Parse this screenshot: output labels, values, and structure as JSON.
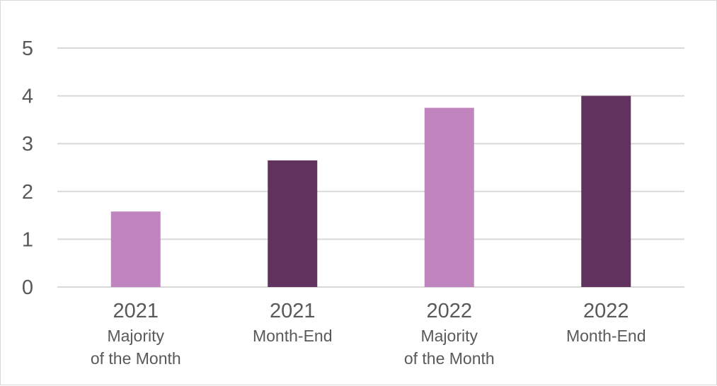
{
  "chart_data": {
    "type": "bar",
    "categories": [
      {
        "year": "2021",
        "label_lines": [
          "Majority",
          "of the Month"
        ]
      },
      {
        "year": "2021",
        "label_lines": [
          "Month-End"
        ]
      },
      {
        "year": "2022",
        "label_lines": [
          "Majority",
          "of the Month"
        ]
      },
      {
        "year": "2022",
        "label_lines": [
          "Month-End"
        ]
      }
    ],
    "values": [
      1.58,
      2.65,
      3.75,
      4.0
    ],
    "bar_colors": [
      "#c084bf",
      "#60325e",
      "#c084bf",
      "#60325e"
    ],
    "title": "",
    "xlabel": "",
    "ylabel": "",
    "ylim": [
      0,
      5
    ],
    "yticks": [
      "0",
      "1",
      "2",
      "3",
      "4",
      "5"
    ],
    "grid": true,
    "legend": "none"
  }
}
